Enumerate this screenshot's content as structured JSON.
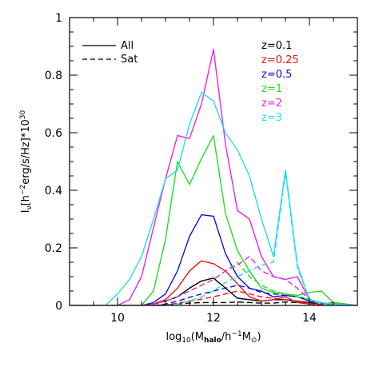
{
  "chart_data": {
    "type": "line",
    "xlabel_parts": {
      "main": "log",
      "sub": "10",
      "open": "(M",
      "halo": "halo",
      "mid": "/h",
      "exp": "−1",
      "m": "M",
      "sun": "⊙",
      "close": ")"
    },
    "ylabel_parts": {
      "i": "I",
      "nu": "ν",
      "open": "[h",
      "exp1": "−2",
      "rest": "erg/s/Hz]*10",
      "exp2": "30"
    },
    "xlim": [
      9,
      15
    ],
    "ylim": [
      0,
      1
    ],
    "xticks": [
      "10",
      "12",
      "14"
    ],
    "yticks": [
      "0",
      "0.2",
      "0.4",
      "0.6",
      "0.8",
      "1"
    ],
    "grid": false,
    "legend_styles": [
      {
        "label": "All",
        "dash": "solid"
      },
      {
        "label": "Sat",
        "dash": "dashed"
      }
    ],
    "legend_placement": "top-left / top-right",
    "series": [
      {
        "name": "z=0.1",
        "color": "#000000",
        "all": [
          [
            9,
            0
          ],
          [
            9.75,
            0
          ],
          [
            10,
            0
          ],
          [
            10.25,
            0
          ],
          [
            10.5,
            0
          ],
          [
            10.75,
            0.005
          ],
          [
            11,
            0.015
          ],
          [
            11.25,
            0.03
          ],
          [
            11.5,
            0.06
          ],
          [
            11.75,
            0.085
          ],
          [
            12,
            0.095
          ],
          [
            12.25,
            0.06
          ],
          [
            12.5,
            0.025
          ],
          [
            12.75,
            0.02
          ],
          [
            13,
            0.015
          ],
          [
            13.25,
            0.02
          ],
          [
            13.5,
            0.02
          ],
          [
            13.75,
            0.015
          ],
          [
            14,
            0.01
          ],
          [
            14.25,
            0.005
          ],
          [
            14.5,
            0.005
          ],
          [
            15,
            0
          ]
        ],
        "sat": [
          [
            10.5,
            0
          ],
          [
            10.75,
            0
          ],
          [
            11,
            0.002
          ],
          [
            11.25,
            0.005
          ],
          [
            11.5,
            0.008
          ],
          [
            11.75,
            0.01
          ],
          [
            12,
            0.01
          ],
          [
            12.25,
            0.01
          ],
          [
            12.5,
            0.012
          ],
          [
            12.75,
            0.01
          ],
          [
            13,
            0.008
          ],
          [
            13.25,
            0.008
          ],
          [
            13.5,
            0.012
          ],
          [
            13.75,
            0.01
          ],
          [
            14,
            0.005
          ],
          [
            14.25,
            0.002
          ],
          [
            14.5,
            0
          ]
        ]
      },
      {
        "name": "z=0.25",
        "color": "#ee1111",
        "all": [
          [
            9,
            0
          ],
          [
            10,
            0
          ],
          [
            10.5,
            0
          ],
          [
            10.75,
            0.005
          ],
          [
            11,
            0.02
          ],
          [
            11.25,
            0.06
          ],
          [
            11.5,
            0.12
          ],
          [
            11.75,
            0.155
          ],
          [
            12,
            0.145
          ],
          [
            12.25,
            0.12
          ],
          [
            12.5,
            0.075
          ],
          [
            12.75,
            0.03
          ],
          [
            13,
            0.015
          ],
          [
            13.25,
            0.02
          ],
          [
            13.5,
            0.03
          ],
          [
            13.75,
            0.01
          ],
          [
            14,
            0.005
          ],
          [
            14.25,
            0.005
          ],
          [
            14.5,
            0.01
          ],
          [
            15,
            0
          ]
        ],
        "sat": [
          [
            10.75,
            0
          ],
          [
            11,
            0.002
          ],
          [
            11.25,
            0.008
          ],
          [
            11.5,
            0.015
          ],
          [
            11.75,
            0.022
          ],
          [
            12,
            0.03
          ],
          [
            12.25,
            0.04
          ],
          [
            12.5,
            0.05
          ],
          [
            12.75,
            0.04
          ],
          [
            13,
            0.03
          ],
          [
            13.25,
            0.025
          ],
          [
            13.5,
            0.02
          ],
          [
            13.75,
            0.015
          ],
          [
            14,
            0.005
          ],
          [
            14.25,
            0.002
          ],
          [
            14.5,
            0
          ]
        ]
      },
      {
        "name": "z=0.5",
        "color": "#1111cc",
        "all": [
          [
            9,
            0
          ],
          [
            10,
            0
          ],
          [
            10.5,
            0
          ],
          [
            10.75,
            0.01
          ],
          [
            11,
            0.04
          ],
          [
            11.25,
            0.12
          ],
          [
            11.5,
            0.24
          ],
          [
            11.75,
            0.315
          ],
          [
            12,
            0.31
          ],
          [
            12.25,
            0.18
          ],
          [
            12.5,
            0.1
          ],
          [
            12.75,
            0.06
          ],
          [
            13,
            0.05
          ],
          [
            13.25,
            0.03
          ],
          [
            13.5,
            0.035
          ],
          [
            13.75,
            0.03
          ],
          [
            14,
            0.015
          ],
          [
            14.25,
            0.008
          ],
          [
            14.5,
            0.005
          ],
          [
            15,
            0
          ]
        ],
        "sat": [
          [
            10.75,
            0
          ],
          [
            11,
            0.005
          ],
          [
            11.25,
            0.015
          ],
          [
            11.5,
            0.028
          ],
          [
            11.75,
            0.04
          ],
          [
            12,
            0.05
          ],
          [
            12.25,
            0.06
          ],
          [
            12.5,
            0.07
          ],
          [
            12.75,
            0.06
          ],
          [
            13,
            0.045
          ],
          [
            13.25,
            0.04
          ],
          [
            13.5,
            0.035
          ],
          [
            13.75,
            0.03
          ],
          [
            14,
            0.02
          ],
          [
            14.25,
            0.01
          ],
          [
            14.5,
            0
          ]
        ]
      },
      {
        "name": "z=1",
        "color": "#22dd22",
        "all": [
          [
            9,
            0
          ],
          [
            10,
            0
          ],
          [
            10.5,
            0
          ],
          [
            10.75,
            0.05
          ],
          [
            11,
            0.23
          ],
          [
            11.25,
            0.5
          ],
          [
            11.5,
            0.42
          ],
          [
            11.75,
            0.51
          ],
          [
            12,
            0.59
          ],
          [
            12.25,
            0.32
          ],
          [
            12.5,
            0.19
          ],
          [
            12.75,
            0.12
          ],
          [
            13,
            0.06
          ],
          [
            13.25,
            0.045
          ],
          [
            13.5,
            0.04
          ],
          [
            13.75,
            0.035
          ],
          [
            14,
            0.045
          ],
          [
            14.25,
            0.05
          ],
          [
            14.5,
            0.01
          ],
          [
            15,
            0
          ]
        ],
        "sat": [
          [
            10.5,
            0
          ],
          [
            10.75,
            0.005
          ],
          [
            11,
            0.015
          ],
          [
            11.25,
            0.03
          ],
          [
            11.5,
            0.05
          ],
          [
            11.75,
            0.07
          ],
          [
            12,
            0.09
          ],
          [
            12.25,
            0.12
          ],
          [
            12.5,
            0.15
          ],
          [
            12.75,
            0.1
          ],
          [
            13,
            0.07
          ],
          [
            13.25,
            0.05
          ],
          [
            13.5,
            0.04
          ],
          [
            13.75,
            0.03
          ],
          [
            14,
            0.02
          ],
          [
            14.25,
            0.01
          ],
          [
            14.5,
            0
          ]
        ]
      },
      {
        "name": "z=2",
        "color": "#ee22ee",
        "all": [
          [
            9,
            0
          ],
          [
            10,
            0
          ],
          [
            10.25,
            0.02
          ],
          [
            10.5,
            0.1
          ],
          [
            10.75,
            0.27
          ],
          [
            11,
            0.44
          ],
          [
            11.25,
            0.59
          ],
          [
            11.5,
            0.58
          ],
          [
            11.75,
            0.7
          ],
          [
            12,
            0.89
          ],
          [
            12.25,
            0.56
          ],
          [
            12.5,
            0.33
          ],
          [
            12.75,
            0.3
          ],
          [
            13,
            0.17
          ],
          [
            13.25,
            0.1
          ],
          [
            13.5,
            0.09
          ],
          [
            13.75,
            0.1
          ],
          [
            14,
            0.02
          ],
          [
            14.25,
            0.01
          ],
          [
            14.5,
            0.005
          ],
          [
            15,
            0
          ]
        ],
        "sat": [
          [
            10.5,
            0
          ],
          [
            10.75,
            0.005
          ],
          [
            11,
            0.015
          ],
          [
            11.25,
            0.03
          ],
          [
            11.5,
            0.05
          ],
          [
            11.75,
            0.07
          ],
          [
            12,
            0.09
          ],
          [
            12.25,
            0.12
          ],
          [
            12.5,
            0.14
          ],
          [
            12.75,
            0.17
          ],
          [
            13,
            0.12
          ],
          [
            13.25,
            0.1
          ],
          [
            13.5,
            0.09
          ],
          [
            13.75,
            0.06
          ],
          [
            14,
            0.02
          ],
          [
            14.25,
            0.005
          ],
          [
            14.5,
            0
          ]
        ]
      },
      {
        "name": "z=3",
        "color": "#22ddee",
        "all": [
          [
            9,
            0
          ],
          [
            9.75,
            0
          ],
          [
            10,
            0.04
          ],
          [
            10.25,
            0.09
          ],
          [
            10.5,
            0.17
          ],
          [
            10.75,
            0.3
          ],
          [
            11,
            0.44
          ],
          [
            11.25,
            0.47
          ],
          [
            11.5,
            0.63
          ],
          [
            11.75,
            0.74
          ],
          [
            12,
            0.71
          ],
          [
            12.25,
            0.6
          ],
          [
            12.5,
            0.54
          ],
          [
            12.75,
            0.45
          ],
          [
            13,
            0.3
          ],
          [
            13.25,
            0.17
          ],
          [
            13.5,
            0.47
          ],
          [
            13.75,
            0.14
          ],
          [
            14,
            0.02
          ],
          [
            14.25,
            0.01
          ],
          [
            14.5,
            0.005
          ],
          [
            15,
            0
          ]
        ],
        "sat": [
          [
            11,
            0
          ],
          [
            11.25,
            0.005
          ],
          [
            11.5,
            0.015
          ],
          [
            11.75,
            0.03
          ],
          [
            12,
            0.05
          ],
          [
            12.25,
            0.08
          ],
          [
            12.5,
            0.1
          ],
          [
            12.75,
            0.12
          ],
          [
            13,
            0.14
          ],
          [
            13.25,
            0.15
          ],
          [
            13.5,
            0.46
          ],
          [
            13.75,
            0.13
          ],
          [
            14,
            0.02
          ],
          [
            14.25,
            0.005
          ],
          [
            14.5,
            0
          ]
        ]
      }
    ]
  }
}
